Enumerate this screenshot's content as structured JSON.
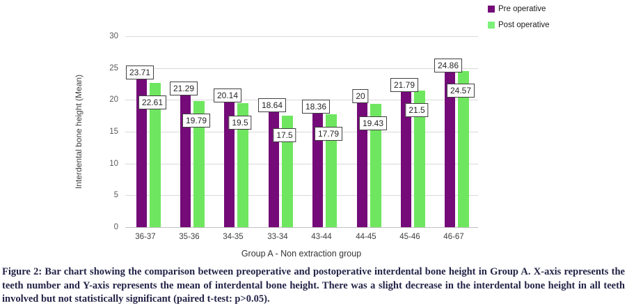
{
  "legend": {
    "items": [
      {
        "label": "Pre operative",
        "color": "#740b78"
      },
      {
        "label": "Post operative",
        "color": "#7df07c"
      }
    ]
  },
  "chart_data": {
    "type": "bar",
    "categories": [
      "36-37",
      "35-36",
      "34-35",
      "33-34",
      "43-44",
      "44-45",
      "45-46",
      "46-67"
    ],
    "series": [
      {
        "name": "Pre operative",
        "color": "#740b78",
        "values": [
          23.71,
          21.29,
          20.14,
          18.64,
          18.36,
          20,
          21.79,
          24.86
        ]
      },
      {
        "name": "Post operative",
        "color": "#6fe65f",
        "values": [
          22.61,
          19.79,
          19.5,
          17.5,
          17.79,
          19.43,
          21.5,
          24.57
        ]
      }
    ],
    "title": "",
    "xlabel": "Group A - Non extraction group",
    "ylabel": "Interdental bone height (Mean)",
    "ylim": [
      0,
      30
    ],
    "ytick_step": 5,
    "grid": true,
    "legend_position": "top-right",
    "data_labels": true
  },
  "caption": {
    "text": "Figure 2: Bar chart showing the comparison between preoperative and postoperative interdental bone height in Group A. X-axis represents the teeth number and Y-axis represents the mean of interdental bone height. There was a slight decrease in the interdental bone height in all teeth involved but not statistically significant (paired t-test: p>0.05)."
  }
}
